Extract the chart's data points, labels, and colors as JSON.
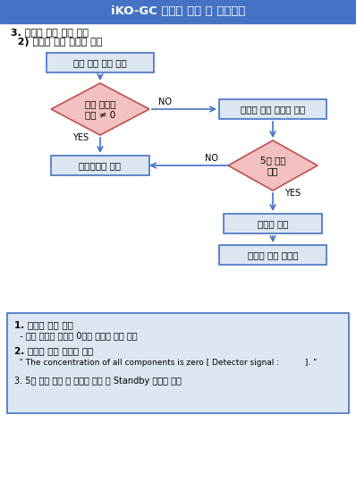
{
  "title": "iKO-GC 이벤트 알림 및 보호모드",
  "title_bg": "#4472c4",
  "title_color": "white",
  "subtitle1": "3. 검출기 이상 발생 알림",
  "subtitle2": "  2) 검출기 신호 비정상 알림",
  "box1_text": "악취 물질 농도 계산",
  "diamond1_text": "모든 물질의\n농도 ≠ 0",
  "box2_text": "이벤트 알림 메시지 표시",
  "box3_text": "스케줄대로 동작",
  "diamond2_text": "5회 연속\n발생",
  "box4_text": "스케줄 중단",
  "box5_text": "스케줄 중단 초기화",
  "note_title1": "1. 서비스 알림 조건",
  "note_line1": "  - 모든 물질의 농도가 0으로 기록될 경우 알림",
  "note_title2": "2. 서비스 알림 메시지 표시",
  "note_line2": "  \" The concentration of all components is zero [ Detector signal :          ]. \"",
  "note_title3": "3. 5회 연속 발생 시 스케줄 중단 후 Standby 스케줄 실행",
  "box_fill": "#dce6f1",
  "box_border": "#4472c4",
  "diamond_fill": "#f2c0c0",
  "diamond_border": "#c0504d",
  "note_fill": "#dce6f1",
  "note_border": "#4472c4",
  "arrow_color": "#4472c4",
  "bg_color": "white",
  "label_no": "NO",
  "label_yes": "YES"
}
